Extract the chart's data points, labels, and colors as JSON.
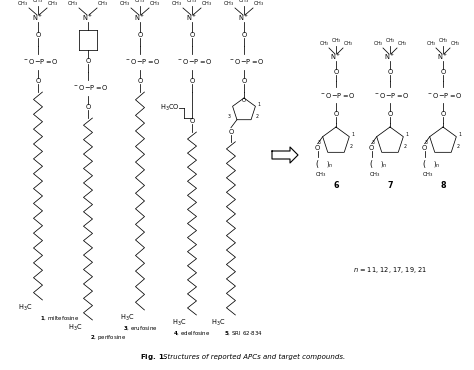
{
  "caption_bold": "Fig. 1.",
  "caption_rest": "  Structures of reported APCs and target compounds.",
  "n_values": "n = 11, 12, 17, 19, 21",
  "compound_labels": [
    "1, miltefosine",
    "2, perifosine",
    "3, erufosine",
    "4, edelfosine",
    "5, SRI 62-834"
  ],
  "right_labels": [
    "6",
    "7",
    "8"
  ],
  "bg": "#ffffff",
  "fg": "#000000",
  "fig_w": 4.74,
  "fig_h": 3.7,
  "dpi": 100
}
